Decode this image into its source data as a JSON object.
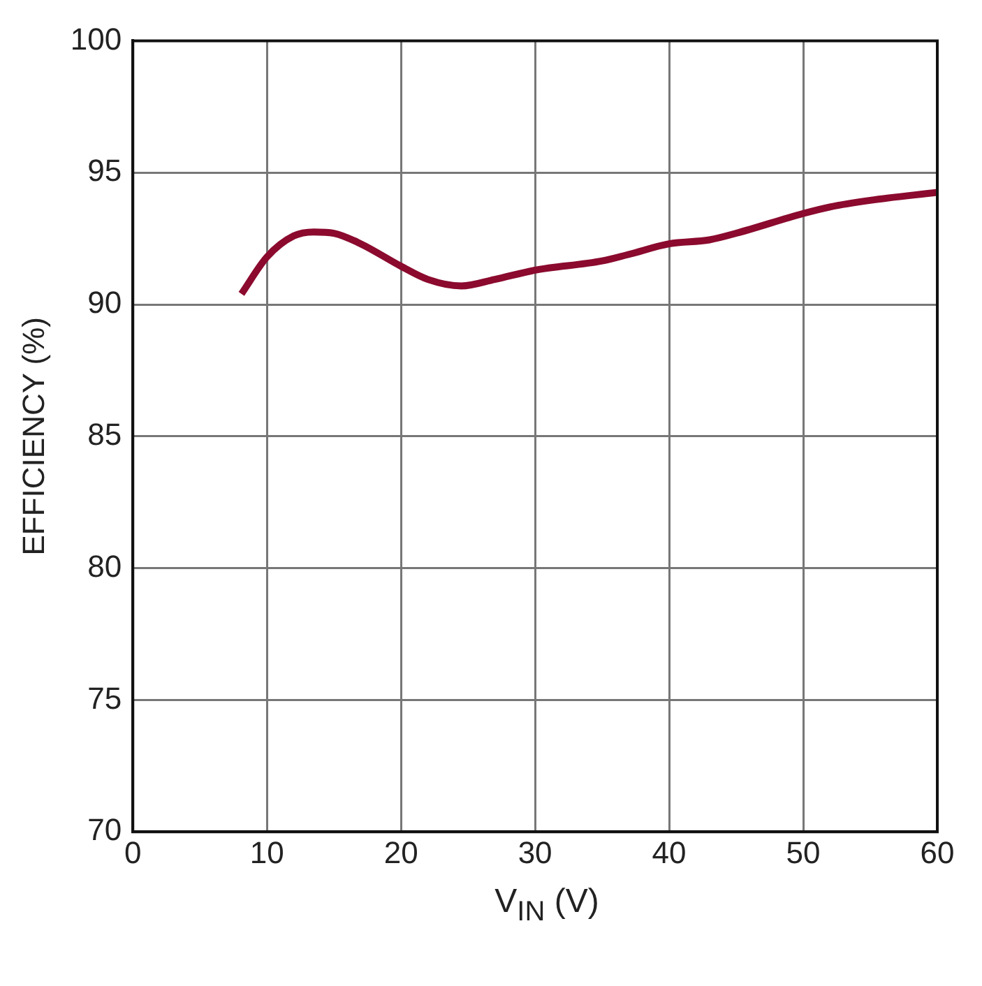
{
  "chart_data": {
    "type": "line",
    "xlabel": "V$_{IN}$ (V)",
    "ylabel": "EFFICIENCY (%)",
    "series": [
      {
        "color": "#8b0a2e",
        "x": [
          8.1,
          10,
          12,
          13.5,
          15,
          17,
          20,
          22,
          24.5,
          27,
          30,
          35,
          37,
          40,
          43,
          45,
          50,
          52,
          55,
          60
        ],
        "values": [
          90.4,
          91.8,
          92.6,
          92.75,
          92.7,
          92.3,
          91.45,
          90.95,
          90.7,
          90.95,
          91.3,
          91.65,
          91.9,
          92.3,
          92.45,
          92.7,
          93.45,
          93.7,
          93.95,
          94.25
        ]
      }
    ],
    "xlim": [
      0,
      60
    ],
    "xticks": [
      0,
      10,
      20,
      30,
      40,
      50,
      60
    ],
    "ylim": [
      70,
      100
    ],
    "yticks": [
      70,
      75,
      80,
      85,
      90,
      95,
      100
    ],
    "grid": true,
    "legend": false,
    "marker": "none",
    "line_style": "solid"
  }
}
